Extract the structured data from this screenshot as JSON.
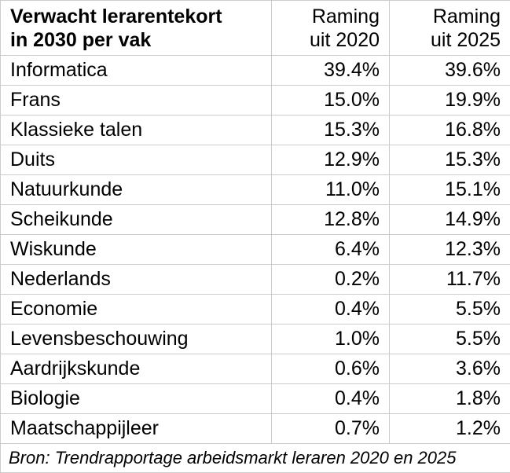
{
  "table": {
    "header": [
      [
        "Verwacht lerarentekort",
        "in 2030 per vak"
      ],
      [
        "Raming",
        "uit 2020"
      ],
      [
        "Raming",
        "uit 2025"
      ]
    ],
    "rows": [
      [
        "Informatica",
        "39.4%",
        "39.6%"
      ],
      [
        "Frans",
        "15.0%",
        "19.9%"
      ],
      [
        "Klassieke talen",
        "15.3%",
        "16.8%"
      ],
      [
        "Duits",
        "12.9%",
        "15.3%"
      ],
      [
        "Natuurkunde",
        "11.0%",
        "15.1%"
      ],
      [
        "Scheikunde",
        "12.8%",
        "14.9%"
      ],
      [
        "Wiskunde",
        "6.4%",
        "12.3%"
      ],
      [
        "Nederlands",
        "0.2%",
        "11.7%"
      ],
      [
        "Economie",
        "0.4%",
        "5.5%"
      ],
      [
        "Levensbeschouwing",
        "1.0%",
        "5.5%"
      ],
      [
        "Aardrijkskunde",
        "0.6%",
        "3.6%"
      ],
      [
        "Biologie",
        "0.4%",
        "1.8%"
      ],
      [
        "Maatschappijleer",
        "0.7%",
        "1.2%"
      ]
    ],
    "source": "Bron: Trendrapportage arbeidsmarkt leraren 2020 en 2025"
  }
}
